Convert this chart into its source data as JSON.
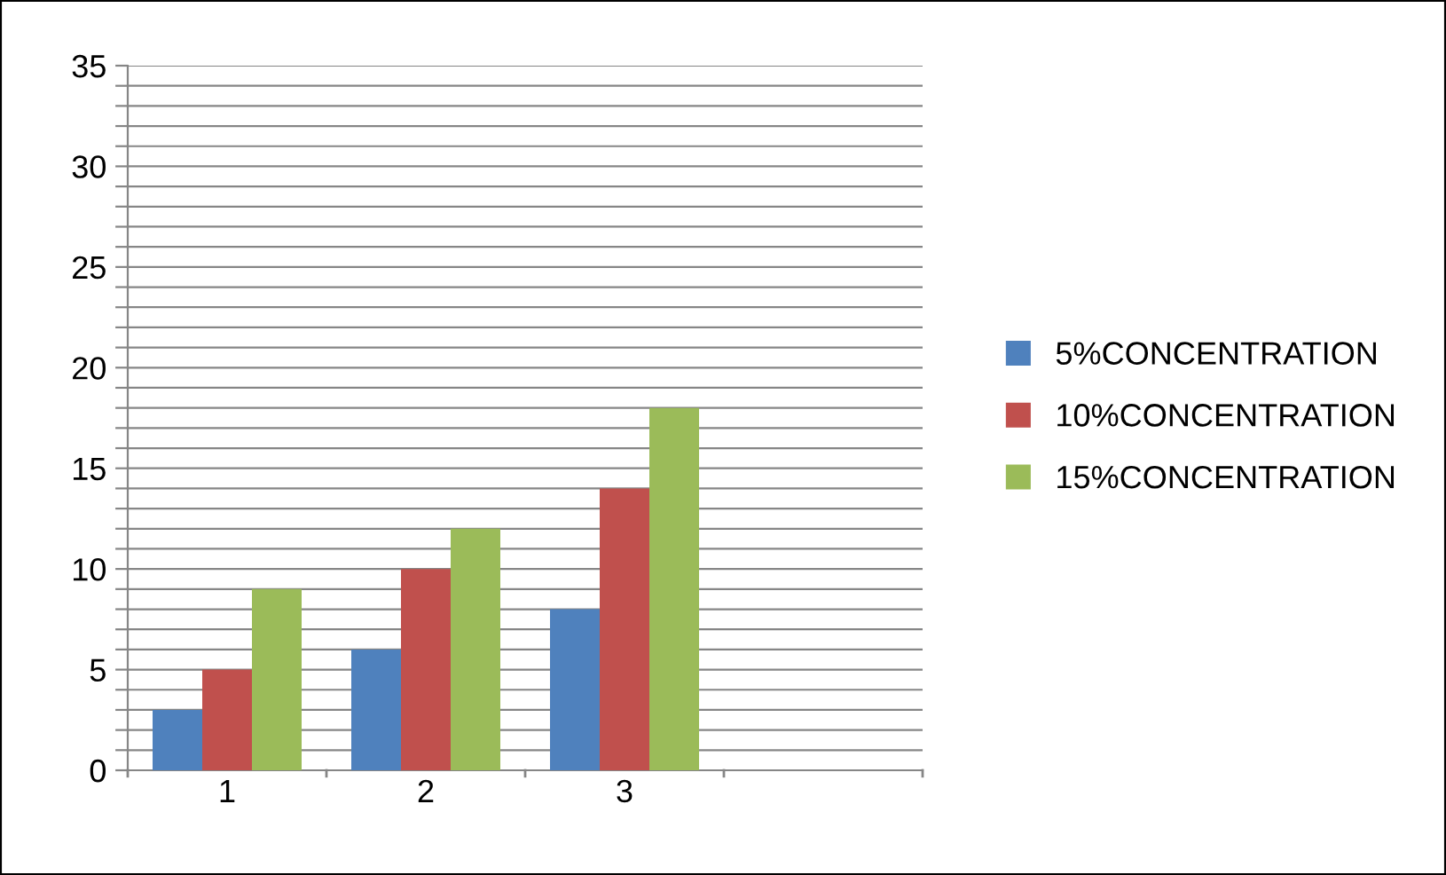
{
  "chart_data": {
    "type": "bar",
    "categories": [
      "1",
      "2",
      "3",
      null
    ],
    "series": [
      {
        "name": "5%CONCENTRATION",
        "color": "#4f81bd",
        "values": [
          3,
          6,
          8,
          null
        ]
      },
      {
        "name": "10%CONCENTRATION",
        "color": "#c0504d",
        "values": [
          5,
          10,
          14,
          null
        ]
      },
      {
        "name": "15%CONCENTRATION",
        "color": "#9bbb59",
        "values": [
          9,
          12,
          18,
          null
        ]
      }
    ],
    "ylim": [
      0,
      35
    ],
    "yticks": [
      0,
      {
        "value": 1,
        "label": null
      },
      {
        "value": 2,
        "label": null
      },
      {
        "value": 3,
        "label": null
      },
      {
        "value": 4,
        "label": null
      },
      5,
      {
        "value": 6,
        "label": null
      },
      {
        "value": 7,
        "label": null
      },
      {
        "value": 8,
        "label": null
      },
      {
        "value": 9,
        "label": null
      },
      10,
      {
        "value": 11,
        "label": null
      },
      {
        "value": 12,
        "label": null
      },
      {
        "value": 13,
        "label": null
      },
      {
        "value": 14,
        "label": null
      },
      15,
      {
        "value": 16,
        "label": null
      },
      {
        "value": 17,
        "label": null
      },
      {
        "value": 18,
        "label": null
      },
      {
        "value": 19,
        "label": null
      },
      20,
      {
        "value": 21,
        "label": null
      },
      {
        "value": 22,
        "label": null
      },
      {
        "value": 23,
        "label": null
      },
      {
        "value": 24,
        "label": null
      },
      25,
      {
        "value": 26,
        "label": null
      },
      {
        "value": 27,
        "label": null
      },
      {
        "value": 28,
        "label": null
      },
      {
        "value": 29,
        "label": null
      },
      30,
      {
        "value": 31,
        "label": null
      },
      {
        "value": 32,
        "label": null
      },
      {
        "value": 33,
        "label": null
      },
      {
        "value": 34,
        "label": null
      },
      35
    ],
    "grid": "y",
    "legend": "right"
  }
}
